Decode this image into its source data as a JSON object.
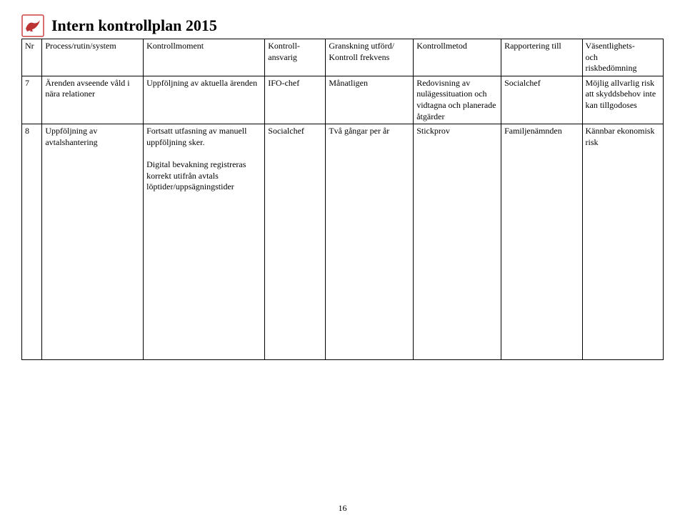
{
  "logo": {
    "bg": "#ffffff",
    "border": "#c44",
    "bird": "#b33"
  },
  "title": "Intern kontrollplan 2015",
  "columns": [
    "Nr",
    "Process/rutin/system",
    "Kontrollmoment",
    "Kontroll-\nansvarig",
    "Granskning utförd/\nKontroll frekvens",
    "Kontrollmetod",
    "Rapportering till",
    "Väsentlighets-\noch\nriskbedömning"
  ],
  "rows": [
    {
      "nr": "7",
      "process": "Ärenden avseende våld i nära relationer",
      "moment": "Uppföljning av aktuella ärenden",
      "ansvarig": "IFO-chef",
      "frekvens": "Månatligen",
      "metod": "Redovisning av nulägessituation och vidtagna och planerade åtgärder",
      "rapport": "Socialchef",
      "risk": "Möjlig allvarlig risk att skyddsbehov inte kan tillgodoses"
    },
    {
      "nr": "8",
      "process": "Uppföljning av avtalshantering",
      "moment": "Fortsatt utfasning av manuell uppföljning sker.\n\nDigital bevakning registreras korrekt utifrån avtals löptider/uppsägningstider",
      "ansvarig": "Socialchef",
      "frekvens": "Två gångar per år",
      "metod": "Stickprov",
      "rapport": "Familjenämnden",
      "risk": "Kännbar ekonomisk risk"
    }
  ],
  "page_number": "16"
}
